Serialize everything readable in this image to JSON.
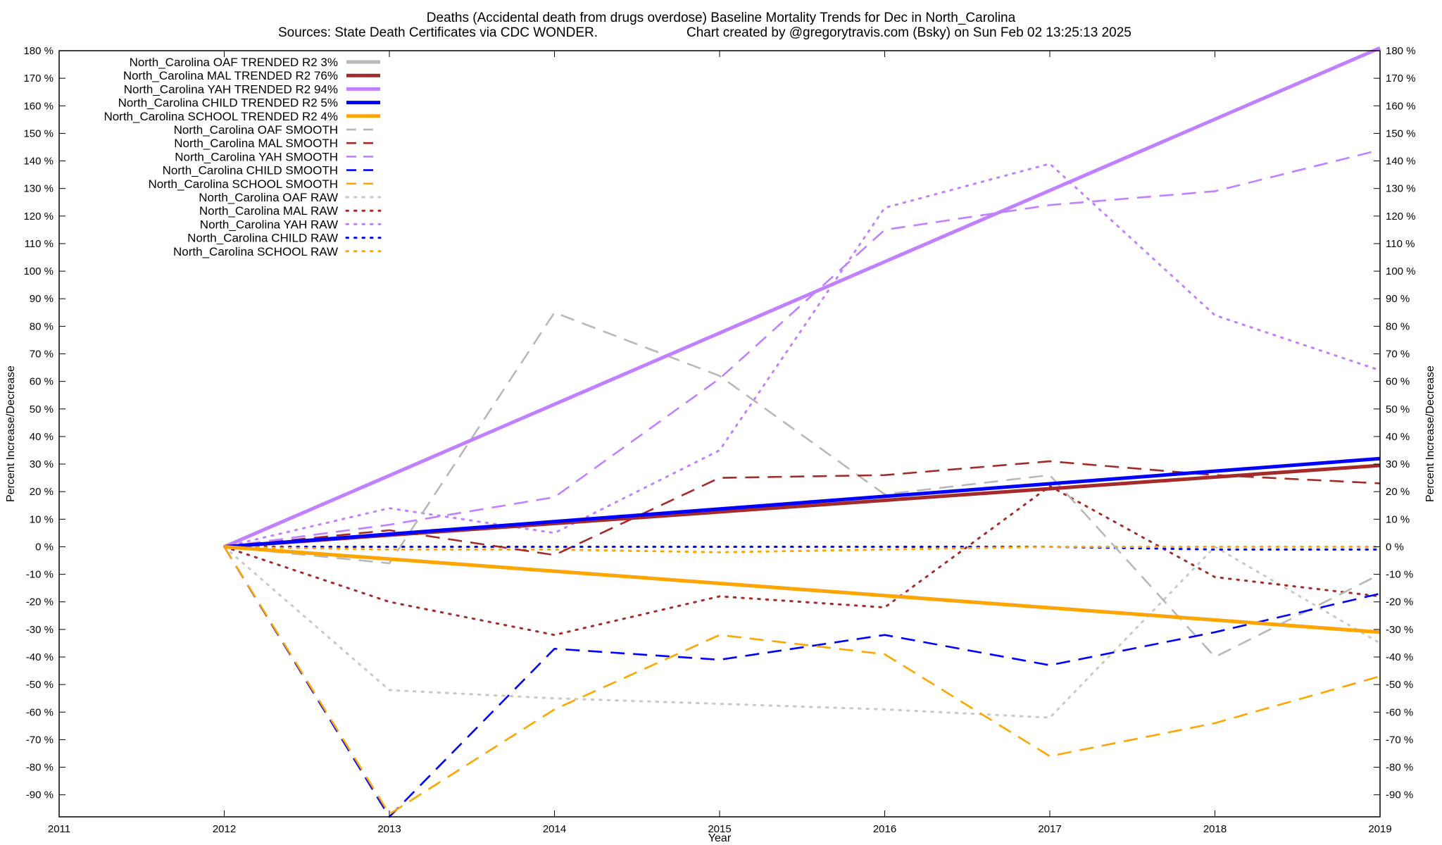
{
  "chart_data": {
    "type": "line",
    "title": "Deaths (Accidental death from drugs overdose)  Baseline Mortality Trends for Dec in North_Carolina",
    "subtitle_left": "Sources: State Death Certificates via CDC WONDER.",
    "subtitle_right": "Chart created by @gregorytravis.com (Bsky) on Sun Feb 02 13:25:13 2025",
    "xlabel": "Year",
    "ylabel_left": "Percent Increase/Decrease",
    "ylabel_right": "Percent Increase/Decrease",
    "xlim": [
      2011,
      2019
    ],
    "ylim": [
      -98,
      180
    ],
    "x_ticks": [
      "2011",
      "2012",
      "2013",
      "2014",
      "2015",
      "2016",
      "2017",
      "2018",
      "2019"
    ],
    "y_ticks": [
      "180 %",
      "170 %",
      "160 %",
      "150 %",
      "140 %",
      "130 %",
      "120 %",
      "110 %",
      "100 %",
      "90 %",
      "80 %",
      "70 %",
      "60 %",
      "50 %",
      "40 %",
      "30 %",
      "20 %",
      "10 %",
      "0 %",
      "-10 %",
      "-20 %",
      "-30 %",
      "-40 %",
      "-50 %",
      "-60 %",
      "-70 %",
      "-80 %",
      "-90 %"
    ],
    "y_tick_values": [
      180,
      170,
      160,
      150,
      140,
      130,
      120,
      110,
      100,
      90,
      80,
      70,
      60,
      50,
      40,
      30,
      20,
      10,
      0,
      -10,
      -20,
      -30,
      -40,
      -50,
      -60,
      -70,
      -80,
      -90
    ],
    "grid": false,
    "legend_position": "top-left",
    "series": [
      {
        "name": "North_Carolina OAF TRENDED R2   3%",
        "group": "OAF",
        "style": "trend",
        "color": "#b8b8b8",
        "x": [
          2012,
          2019
        ],
        "values": [
          0,
          -31
        ]
      },
      {
        "name": "North_Carolina MAL TRENDED R2  76%",
        "group": "MAL",
        "style": "trend",
        "color": "#a52a2a",
        "x": [
          2012,
          2019
        ],
        "values": [
          0,
          29.5
        ]
      },
      {
        "name": "North_Carolina YAH TRENDED R2  94%",
        "group": "YAH",
        "style": "trend",
        "color": "#c080ff",
        "x": [
          2012,
          2019
        ],
        "values": [
          0,
          181
        ]
      },
      {
        "name": "North_Carolina CHILD TRENDED R2   5%",
        "group": "CHILD",
        "style": "trend",
        "color": "#0000ff",
        "x": [
          2012,
          2019
        ],
        "values": [
          0,
          32
        ]
      },
      {
        "name": "North_Carolina SCHOOL TRENDED R2   4%",
        "group": "SCHOOL",
        "style": "trend",
        "color": "#ffa500",
        "x": [
          2012,
          2019
        ],
        "values": [
          0,
          -31
        ]
      },
      {
        "name": "North_Carolina OAF SMOOTH",
        "group": "OAF",
        "style": "smooth",
        "color": "#b8b8b8",
        "x": [
          2012,
          2013,
          2014,
          2015,
          2016,
          2017,
          2018,
          2019
        ],
        "values": [
          0,
          -6,
          85,
          62,
          19,
          26,
          -40,
          -10
        ]
      },
      {
        "name": "North_Carolina MAL SMOOTH",
        "group": "MAL",
        "style": "smooth",
        "color": "#a52a2a",
        "x": [
          2012,
          2013,
          2014,
          2015,
          2016,
          2017,
          2018,
          2019
        ],
        "values": [
          0,
          6,
          -3,
          25,
          26,
          31,
          26,
          23
        ]
      },
      {
        "name": "North_Carolina YAH SMOOTH",
        "group": "YAH",
        "style": "smooth",
        "color": "#c080ff",
        "x": [
          2012,
          2013,
          2014,
          2015,
          2016,
          2017,
          2018,
          2019
        ],
        "values": [
          0,
          8,
          18,
          61,
          115,
          124,
          129,
          144
        ]
      },
      {
        "name": "North_Carolina CHILD SMOOTH",
        "group": "CHILD",
        "style": "smooth",
        "color": "#0000ff",
        "x": [
          2012,
          2013,
          2014,
          2015,
          2016,
          2017,
          2018,
          2019
        ],
        "values": [
          0,
          -98,
          -37,
          -41,
          -32,
          -43,
          -31,
          -17
        ]
      },
      {
        "name": "North_Carolina SCHOOL SMOOTH",
        "group": "SCHOOL",
        "style": "smooth",
        "color": "#ffa500",
        "x": [
          2012,
          2013,
          2014,
          2015,
          2016,
          2017,
          2018,
          2019
        ],
        "values": [
          0,
          -97,
          -59,
          -32,
          -39,
          -76,
          -64,
          -47
        ]
      },
      {
        "name": "North_Carolina OAF RAW",
        "group": "OAF",
        "style": "raw",
        "color": "#c8c8c8",
        "x": [
          2012,
          2013,
          2014,
          2015,
          2016,
          2017,
          2018,
          2019
        ],
        "values": [
          0,
          -52,
          -55,
          -57,
          -59,
          -62,
          0,
          -35
        ]
      },
      {
        "name": "North_Carolina MAL RAW",
        "group": "MAL",
        "style": "raw",
        "color": "#a52a2a",
        "x": [
          2012,
          2013,
          2014,
          2015,
          2016,
          2017,
          2018,
          2019
        ],
        "values": [
          0,
          -20,
          -32,
          -18,
          -22,
          22,
          -11,
          -18
        ]
      },
      {
        "name": "North_Carolina YAH RAW",
        "group": "YAH",
        "style": "raw",
        "color": "#c080ff",
        "x": [
          2012,
          2013,
          2014,
          2015,
          2016,
          2017,
          2018,
          2019
        ],
        "values": [
          0,
          14,
          5,
          35,
          123,
          139,
          84,
          64
        ]
      },
      {
        "name": "North_Carolina CHILD RAW",
        "group": "CHILD",
        "style": "raw",
        "color": "#0000ff",
        "x": [
          2012,
          2013,
          2014,
          2015,
          2016,
          2017,
          2018,
          2019
        ],
        "values": [
          0,
          0,
          0,
          0,
          0,
          0,
          -1,
          -1
        ]
      },
      {
        "name": "North_Carolina SCHOOL RAW",
        "group": "SCHOOL",
        "style": "raw",
        "color": "#ffa500",
        "x": [
          2012,
          2013,
          2014,
          2015,
          2016,
          2017,
          2018,
          2019
        ],
        "values": [
          0,
          -1,
          -1,
          -2,
          -1,
          0,
          0,
          0
        ]
      }
    ]
  }
}
